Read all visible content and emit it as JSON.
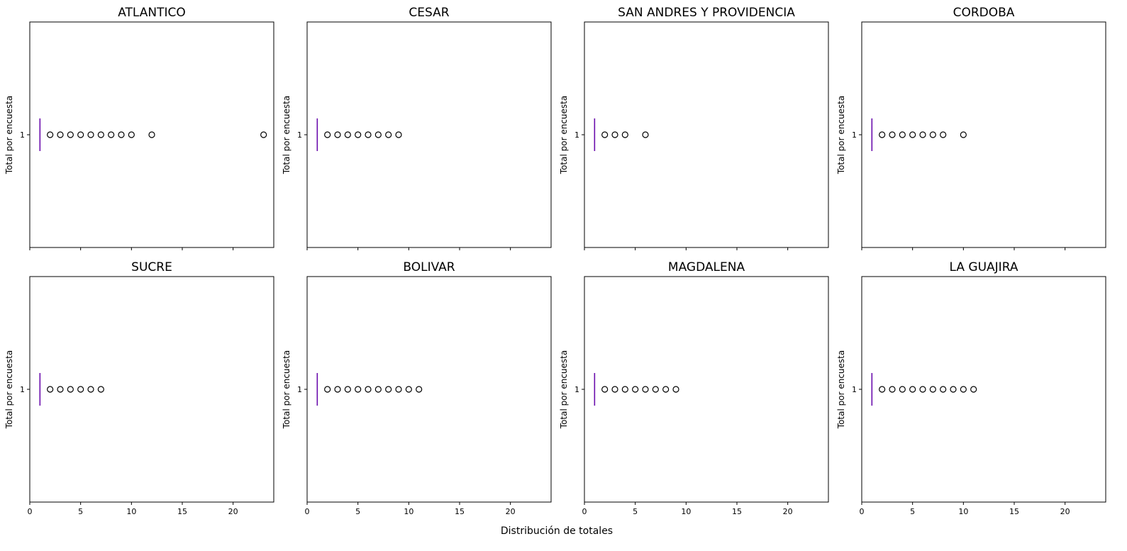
{
  "chart_data": {
    "type": "boxplot",
    "layout": "2 rows x 4 columns, shared x axis",
    "xlabel": "Distribución de totales",
    "ylabel": "Total por encuesta",
    "xlim": [
      0,
      24
    ],
    "xticks": [
      0,
      5,
      10,
      15,
      20
    ],
    "ytick_label": "1",
    "orientation": "horizontal",
    "box_color": "#6a0dad",
    "outlier_marker": "open circle",
    "grid": false,
    "panels": [
      {
        "title": "ATLANTICO",
        "median": 1,
        "q1": 1,
        "q3": 1,
        "whisker_low": 1,
        "whisker_high": 1,
        "outliers": [
          2,
          3,
          4,
          5,
          6,
          7,
          8,
          9,
          10,
          12,
          23
        ]
      },
      {
        "title": "CESAR",
        "median": 1,
        "q1": 1,
        "q3": 1,
        "whisker_low": 1,
        "whisker_high": 1,
        "outliers": [
          2,
          3,
          4,
          5,
          6,
          7,
          8,
          9
        ]
      },
      {
        "title": "SAN ANDRES Y PROVIDENCIA",
        "median": 1,
        "q1": 1,
        "q3": 1,
        "whisker_low": 1,
        "whisker_high": 1,
        "outliers": [
          2,
          3,
          4,
          6
        ]
      },
      {
        "title": "CORDOBA",
        "median": 1,
        "q1": 1,
        "q3": 1,
        "whisker_low": 1,
        "whisker_high": 1,
        "outliers": [
          2,
          3,
          4,
          5,
          6,
          7,
          8,
          10
        ]
      },
      {
        "title": "SUCRE",
        "median": 1,
        "q1": 1,
        "q3": 1,
        "whisker_low": 1,
        "whisker_high": 1,
        "outliers": [
          2,
          3,
          4,
          5,
          6,
          7
        ]
      },
      {
        "title": "BOLIVAR",
        "median": 1,
        "q1": 1,
        "q3": 1,
        "whisker_low": 1,
        "whisker_high": 1,
        "outliers": [
          2,
          3,
          4,
          5,
          6,
          7,
          8,
          9,
          10,
          11
        ]
      },
      {
        "title": "MAGDALENA",
        "median": 1,
        "q1": 1,
        "q3": 1,
        "whisker_low": 1,
        "whisker_high": 1,
        "outliers": [
          2,
          3,
          4,
          5,
          6,
          7,
          8,
          9
        ]
      },
      {
        "title": "LA GUAJIRA",
        "median": 1,
        "q1": 1,
        "q3": 1,
        "whisker_low": 1,
        "whisker_high": 1,
        "outliers": [
          2,
          3,
          4,
          5,
          6,
          7,
          8,
          9,
          10,
          11
        ]
      }
    ]
  }
}
